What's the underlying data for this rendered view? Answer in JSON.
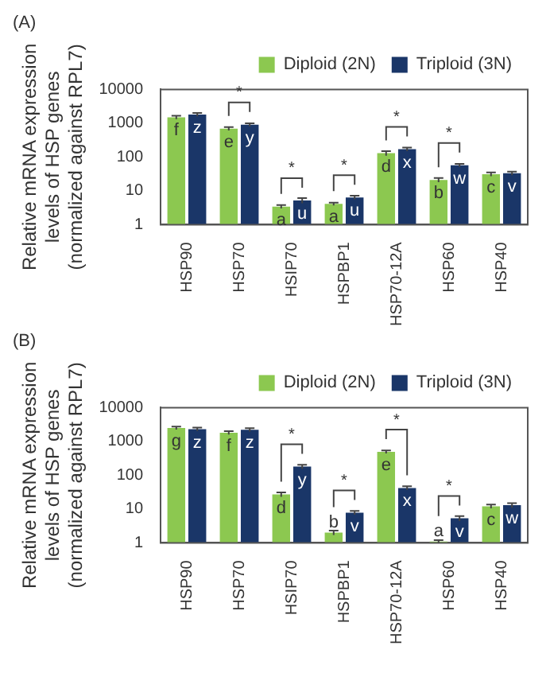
{
  "chart_data": [
    {
      "type": "bar",
      "title": "(A)",
      "ylabel": "Relative mRNA expression levels of HSP genes (normalized against RPL7)",
      "categories": [
        "HSP90",
        "HSP70",
        "HSIP70",
        "HSPBP1",
        "HSP70-12A",
        "HSP60",
        "HSP40"
      ],
      "series": [
        {
          "name": "Diploid (2N)",
          "color": "#8cc850",
          "values": [
            1500,
            690,
            3.4,
            4.1,
            130,
            21,
            31
          ],
          "errors": [
            170,
            80,
            0.4,
            0.4,
            20,
            3,
            4
          ],
          "value_labels": [
            "f",
            "e",
            "a",
            "a",
            "d",
            "b",
            "c"
          ]
        },
        {
          "name": "Triploid (3N)",
          "color": "#1a3668",
          "values": [
            1800,
            900,
            5.2,
            6.4,
            170,
            57,
            33
          ],
          "errors": [
            200,
            100,
            0.9,
            0.8,
            20,
            6,
            4
          ],
          "value_labels": [
            "z",
            "y",
            "u",
            "u",
            "x",
            "w",
            "v"
          ]
        }
      ],
      "annotations": [
        {
          "text": "*",
          "x": "HSP70",
          "y": 900
        },
        {
          "text": "*",
          "x": "HSIP70",
          "y": 5.2
        },
        {
          "text": "*",
          "x": "HSPBP1",
          "y": 6.4
        },
        {
          "text": "*",
          "x": "HSP70-12A",
          "y": 170
        },
        {
          "text": "*",
          "x": "HSP60",
          "y": 57
        }
      ],
      "log": "y",
      "ylim": [
        1,
        10000
      ],
      "yticks": [
        1,
        10,
        100,
        1000,
        10000
      ],
      "legend": "top right"
    },
    {
      "type": "bar",
      "title": "(B)",
      "ylabel": "Relative mRNA expression levels of HSP genes (normalized against RPL7)",
      "categories": [
        "HSP90",
        "HSP70",
        "HSIP70",
        "HSPBP1",
        "HSP70-12A",
        "HSP60",
        "HSP40"
      ],
      "series": [
        {
          "name": "Diploid (2N)",
          "color": "#8cc850",
          "values": [
            2500,
            1800,
            27,
            2.0,
            490,
            1.1,
            12
          ],
          "errors": [
            250,
            200,
            4,
            0.3,
            50,
            0.1,
            1.5
          ],
          "value_labels": [
            "g",
            "f",
            "d",
            "b",
            "e",
            "a",
            "c"
          ]
        },
        {
          "name": "Triploid (3N)",
          "color": "#1a3668",
          "values": [
            2300,
            2200,
            180,
            7.8,
            42,
            5.3,
            13
          ],
          "errors": [
            250,
            250,
            25,
            1,
            5,
            0.9,
            2
          ],
          "value_labels": [
            "z",
            "z",
            "y",
            "v",
            "x",
            "v",
            "w"
          ]
        }
      ],
      "annotations": [
        {
          "text": "*",
          "x": "HSIP70",
          "y": 180
        },
        {
          "text": "*",
          "x": "HSPBP1",
          "y": 7.8
        },
        {
          "text": "*",
          "x": "HSP70-12A",
          "y": 490
        },
        {
          "text": "*",
          "x": "HSP60",
          "y": 5.3
        }
      ],
      "log": "y",
      "ylim": [
        1,
        10000
      ],
      "yticks": [
        1,
        10,
        100,
        1000,
        10000
      ],
      "legend": "top right"
    }
  ]
}
